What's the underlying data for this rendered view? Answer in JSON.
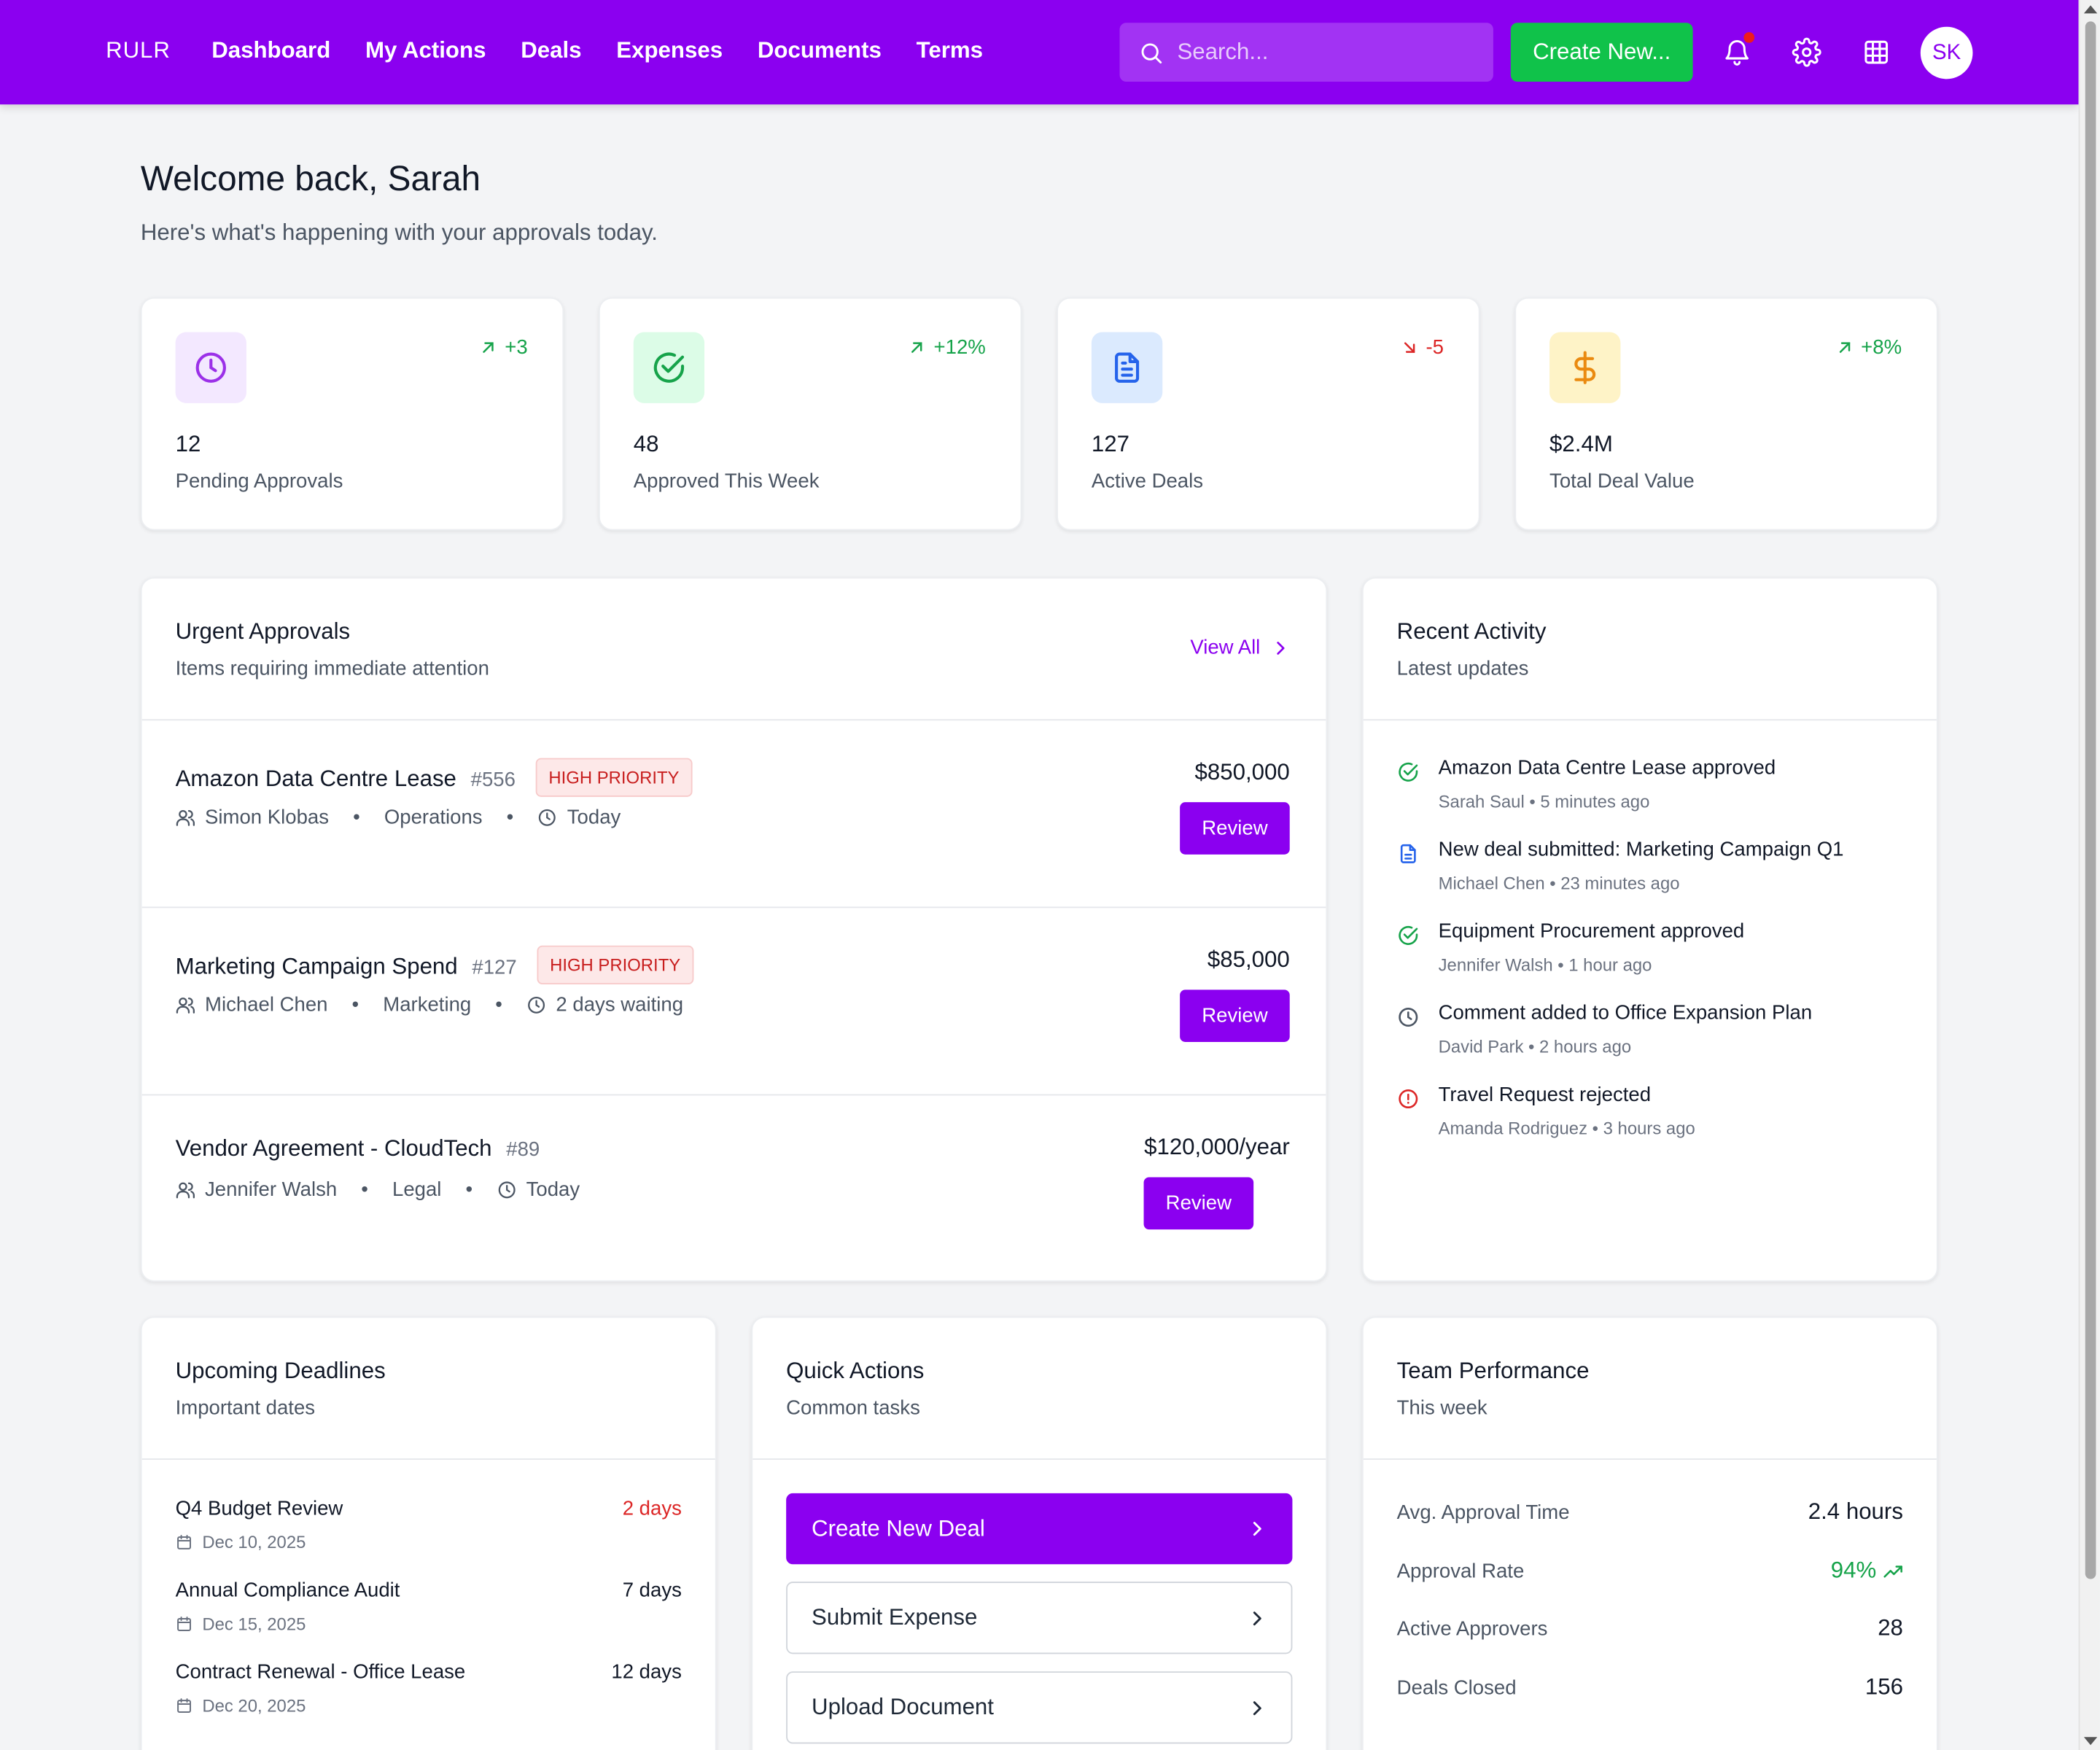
{
  "header": {
    "brand": "RULR",
    "nav": [
      "Dashboard",
      "My Actions",
      "Deals",
      "Expenses",
      "Documents",
      "Terms"
    ],
    "search_placeholder": "Search...",
    "create_label": "Create New...",
    "avatar_initials": "SK",
    "colors": {
      "bar": "#8b00f0",
      "create": "#10c24a",
      "notification_dot": "#ef1b1b"
    }
  },
  "welcome": {
    "title": "Welcome back, Sarah",
    "subtitle": "Here's what's happening with your approvals today."
  },
  "stats": [
    {
      "value": "12",
      "label": "Pending Approvals",
      "change": "+3",
      "trend": "up",
      "icon": "clock-icon",
      "color": "#9b30e8"
    },
    {
      "value": "48",
      "label": "Approved This Week",
      "change": "+12%",
      "trend": "up",
      "icon": "check-circle-icon",
      "color": "#16a34a"
    },
    {
      "value": "127",
      "label": "Active Deals",
      "change": "-5",
      "trend": "down",
      "icon": "document-icon",
      "color": "#2563eb"
    },
    {
      "value": "$2.4M",
      "label": "Total Deal Value",
      "change": "+8%",
      "trend": "up",
      "icon": "dollar-icon",
      "color": "#ea8a10"
    }
  ],
  "urgent": {
    "title": "Urgent Approvals",
    "subtitle": "Items requiring immediate attention",
    "view_all": "View All",
    "review_label": "Review",
    "items": [
      {
        "title": "Amazon Data Centre Lease",
        "id": "#556",
        "priority": "HIGH PRIORITY",
        "person": "Simon Klobas",
        "department": "Operations",
        "time": "Today",
        "amount": "$850,000"
      },
      {
        "title": "Marketing Campaign Spend",
        "id": "#127",
        "priority": "HIGH PRIORITY",
        "person": "Michael Chen",
        "department": "Marketing",
        "time": "2 days waiting",
        "amount": "$85,000"
      },
      {
        "title": "Vendor Agreement - CloudTech",
        "id": "#89",
        "priority": "",
        "person": "Jennifer Walsh",
        "department": "Legal",
        "time": "Today",
        "amount": "$120,000/year"
      }
    ]
  },
  "activity": {
    "title": "Recent Activity",
    "subtitle": "Latest updates",
    "items": [
      {
        "text": "Amazon Data Centre Lease approved",
        "meta": "Sarah Saul • 5 minutes ago",
        "icon": "check-circle-icon"
      },
      {
        "text": "New deal submitted: Marketing Campaign Q1",
        "meta": "Michael Chen • 23 minutes ago",
        "icon": "document-icon"
      },
      {
        "text": "Equipment Procurement approved",
        "meta": "Jennifer Walsh • 1 hour ago",
        "icon": "check-circle-icon"
      },
      {
        "text": "Comment added to Office Expansion Plan",
        "meta": "David Park • 2 hours ago",
        "icon": "clock-icon"
      },
      {
        "text": "Travel Request rejected",
        "meta": "Amanda Rodriguez • 3 hours ago",
        "icon": "alert-circle-icon"
      }
    ]
  },
  "deadlines": {
    "title": "Upcoming Deadlines",
    "subtitle": "Important dates",
    "items": [
      {
        "title": "Q4 Budget Review",
        "date": "Dec 10, 2025",
        "days": "2 days",
        "urgent": true
      },
      {
        "title": "Annual Compliance Audit",
        "date": "Dec 15, 2025",
        "days": "7 days",
        "urgent": false
      },
      {
        "title": "Contract Renewal - Office Lease",
        "date": "Dec 20, 2025",
        "days": "12 days",
        "urgent": false
      }
    ]
  },
  "quick_actions": {
    "title": "Quick Actions",
    "subtitle": "Common tasks",
    "items": [
      "Create New Deal",
      "Submit Expense",
      "Upload Document"
    ]
  },
  "performance": {
    "title": "Team Performance",
    "subtitle": "This week",
    "items": [
      {
        "label": "Avg. Approval Time",
        "value": "2.4 hours"
      },
      {
        "label": "Approval Rate",
        "value": "94%"
      },
      {
        "label": "Active Approvers",
        "value": "28"
      },
      {
        "label": "Deals Closed",
        "value": "156"
      }
    ]
  }
}
